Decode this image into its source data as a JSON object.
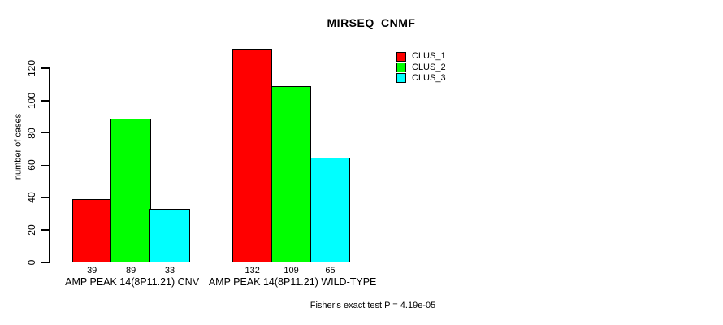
{
  "chart_data": {
    "type": "bar",
    "title": "MIRSEQ_CNMF",
    "ylabel": "number of cases",
    "xlabel": "",
    "footnote": "Fisher's exact test P = 4.19e-05",
    "categories": [
      "AMP PEAK 14(8P11.21) CNV",
      "AMP PEAK 14(8P11.21) WILD-TYPE"
    ],
    "series": [
      {
        "name": "CLUS_1",
        "color": "#FF0000",
        "values": [
          39,
          132
        ]
      },
      {
        "name": "CLUS_2",
        "color": "#00FF00",
        "values": [
          89,
          109
        ]
      },
      {
        "name": "CLUS_3",
        "color": "#00FFFF",
        "values": [
          33,
          65
        ]
      }
    ],
    "bar_value_labels": [
      [
        39,
        89,
        33
      ],
      [
        132,
        109,
        65
      ]
    ],
    "yticks": [
      0,
      20,
      40,
      60,
      80,
      100,
      120
    ],
    "ylim": [
      0,
      132
    ],
    "grid": false,
    "legend_position": "top-right",
    "axis_color": "#000000",
    "background_color": "#FFFFFF"
  }
}
